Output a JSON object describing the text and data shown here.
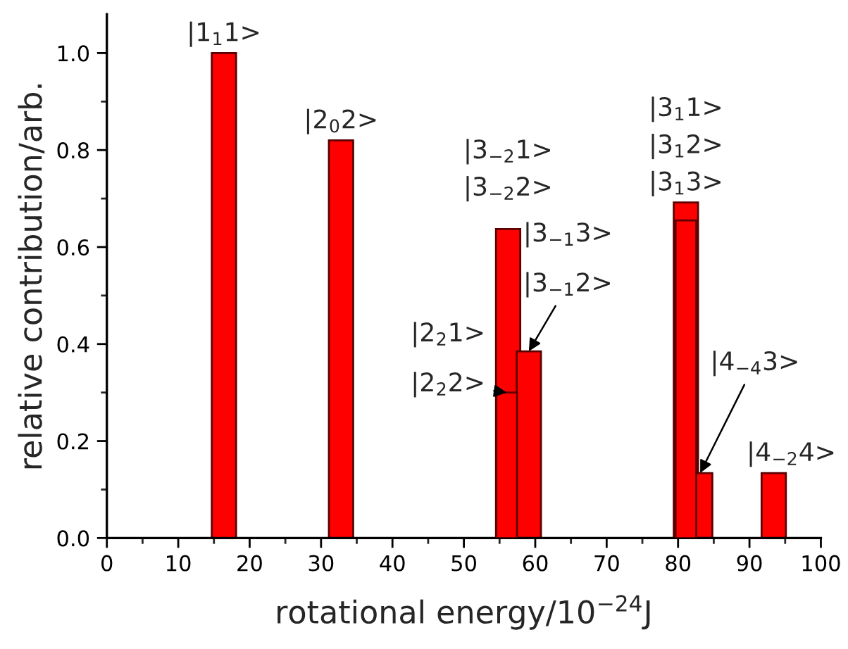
{
  "chart_data": {
    "type": "bar",
    "xlabel": "rotational energy/10$^{−24}$J",
    "ylabel": "relative contribution/arb.",
    "series": [
      {
        "color": "#ff0000",
        "x": [
          16.4,
          32.8,
          56.2,
          59.1,
          81.1,
          83.1,
          93.4
        ],
        "values": [
          1.0,
          0.82,
          0.637,
          0.385,
          0.692,
          0.134,
          0.134
        ]
      },
      {
        "color": "#ff0000",
        "x": [
          56.0,
          81.1
        ],
        "values": [
          0.3,
          0.655
        ]
      }
    ],
    "xlim": [
      0,
      100
    ],
    "xticks": [
      0,
      10,
      20,
      30,
      40,
      50,
      60,
      70,
      80,
      90,
      100
    ],
    "ylim": [
      0,
      1.08
    ],
    "yticks": [
      {
        "value": 0,
        "label": "0.0"
      },
      {
        "value": 0.2,
        "label": "0.2"
      },
      {
        "value": 0.4,
        "label": "0.4"
      },
      {
        "value": 0.6,
        "label": "0.6"
      },
      {
        "value": 0.8,
        "label": "0.8"
      },
      {
        "value": 1.0,
        "label": "1.0"
      }
    ],
    "grid": false,
    "legend": false,
    "annotations": [
      {
        "text": "|1$_{1}$1>",
        "x": 16.4,
        "y": 1.0
      },
      {
        "text": "|2$_{0}$2>",
        "x": 32.8,
        "y": 0.82
      },
      "|3$_{−2}$1>",
      {
        "text": "|3$_{−2}$2>",
        "x": 56.2,
        "y": 0.637
      },
      "|3$_{−1}$3>",
      {
        "text": "|3$_{−1}$2>",
        "x": 59.1,
        "y": 0.385
      },
      "|2$_{2}$1>",
      {
        "text": "|2$_{2}$2>",
        "x": 56.0,
        "y": 0.3
      },
      "|3$_{1}$1>",
      "|3$_{1}$2>",
      {
        "text": "|3$_{1}$3>",
        "x": 81.1,
        "y": 0.692
      },
      {
        "text": "|4$_{−4}$3>",
        "x": 83.1,
        "y": 0.134
      },
      {
        "text": "|4$_{−2}$4>",
        "x": 93.4,
        "y": 0.134
      }
    ]
  }
}
